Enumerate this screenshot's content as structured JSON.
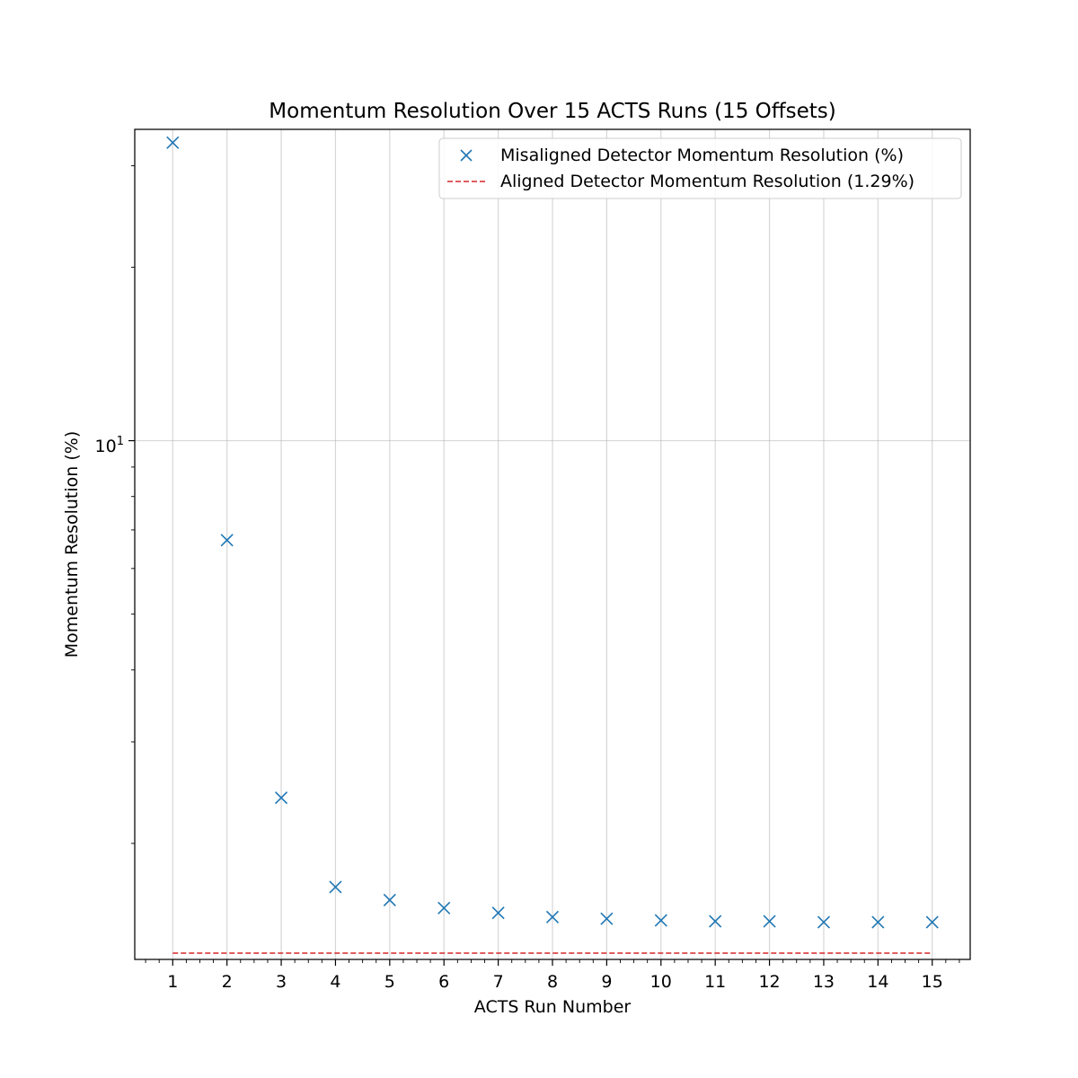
{
  "chart_data": {
    "type": "scatter",
    "title": "Momentum Resolution Over 15 ACTS Runs (15 Offsets)",
    "xlabel": "ACTS Run Number",
    "ylabel": "Momentum Resolution (%)",
    "yscale": "log",
    "xlim": [
      0.3,
      15.7
    ],
    "ylim": [
      1.258,
      34.7
    ],
    "grid": true,
    "legend_position": "top-right",
    "x_ticks": [
      "1",
      "2",
      "3",
      "4",
      "5",
      "6",
      "7",
      "8",
      "9",
      "10",
      "11",
      "12",
      "13",
      "14",
      "15"
    ],
    "y_tick_label": "10",
    "y_tick_exponent": "1",
    "series": [
      {
        "name": "Misaligned Detector Momentum Resolution (%)",
        "marker": "x",
        "color": "#1f77b4",
        "x": [
          1,
          2,
          3,
          4,
          5,
          6,
          7,
          8,
          9,
          10,
          11,
          12,
          13,
          14,
          15
        ],
        "values": [
          32.9,
          6.72,
          2.4,
          1.68,
          1.595,
          1.545,
          1.515,
          1.49,
          1.48,
          1.47,
          1.465,
          1.465,
          1.46,
          1.46,
          1.46
        ]
      },
      {
        "name": "Aligned Detector Momentum Resolution (1.29%)",
        "line_style": "dashed",
        "color": "#d62728",
        "x": [
          1,
          15
        ],
        "values": [
          1.29,
          1.29
        ]
      }
    ]
  }
}
